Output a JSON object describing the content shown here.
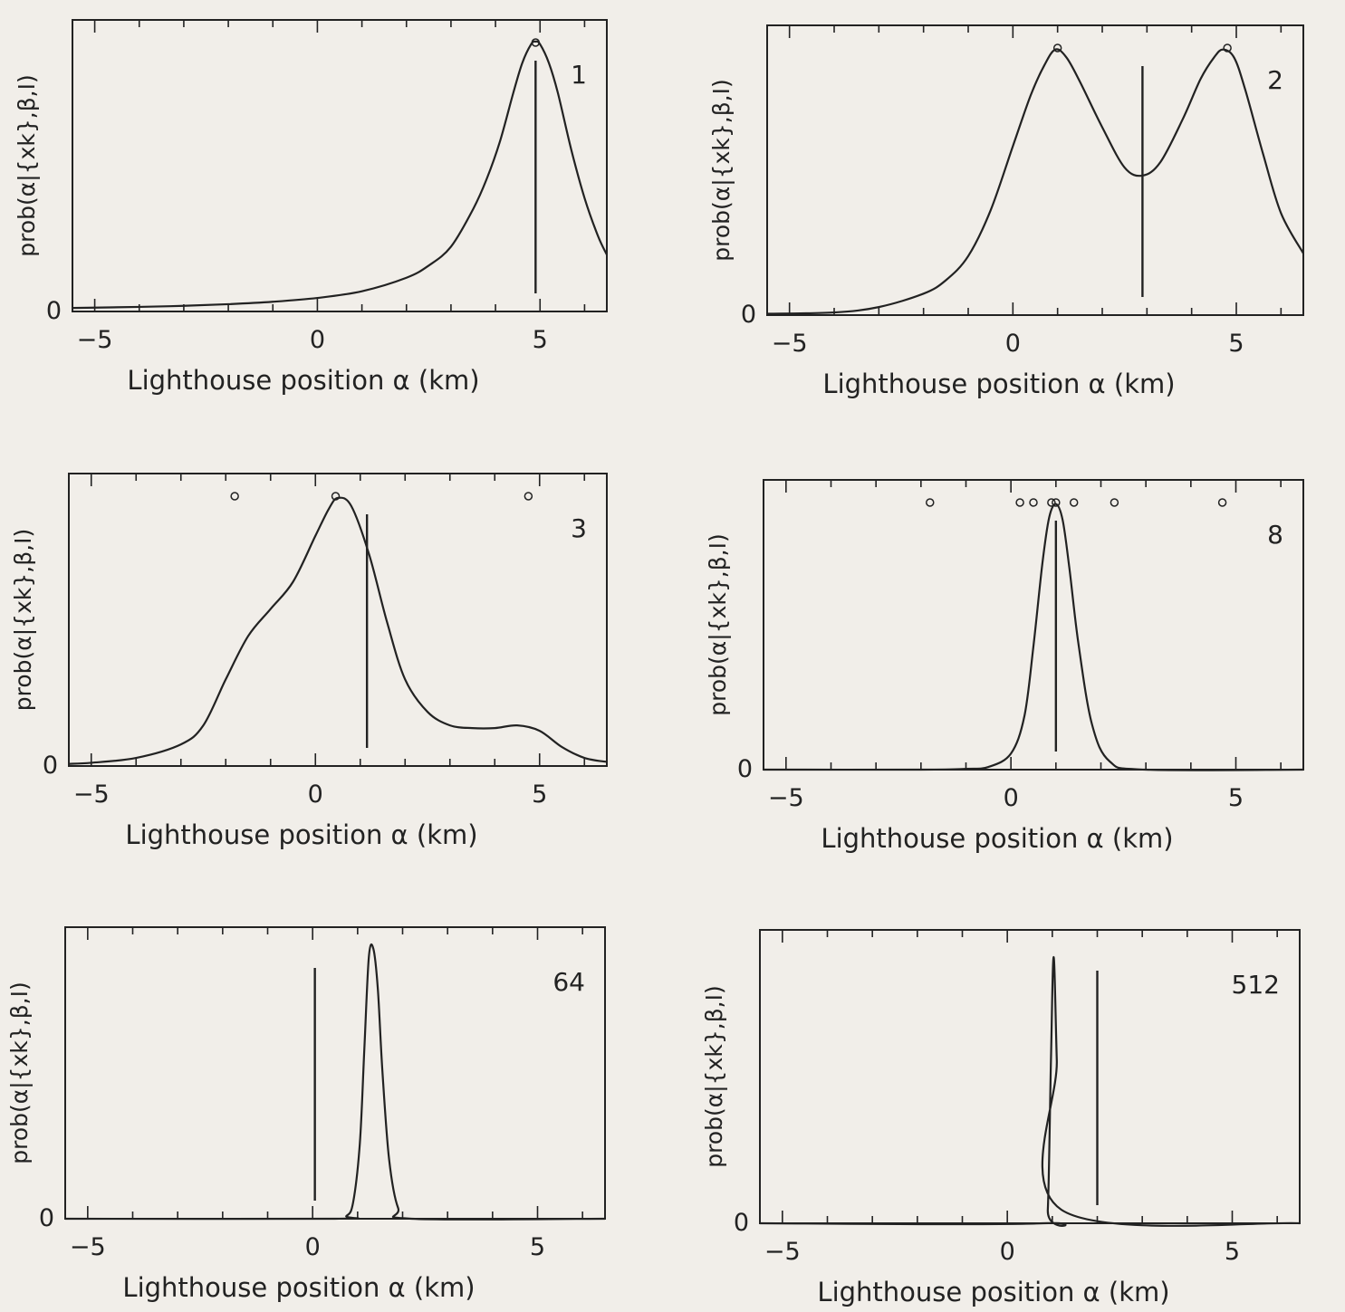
{
  "chart_data": [
    {
      "type": "line",
      "panel_label": "1",
      "xlabel": "Lighthouse position  α (km)",
      "ylabel": "prob(α|{xk},β,I)",
      "x_ticks": [
        "−5",
        "0",
        "5"
      ],
      "y_ticks": [
        "0"
      ],
      "xlim": [
        -5.5,
        6.5
      ],
      "ylim": [
        0,
        1.08
      ],
      "mean_line_x": 4.9,
      "observations": [
        4.9
      ],
      "x": [
        -5.5,
        -4,
        -3,
        -2,
        -1,
        0,
        1,
        2,
        2.5,
        3,
        3.5,
        3.8,
        4.1,
        4.4,
        4.6,
        4.8,
        4.9,
        5.0,
        5.2,
        5.4,
        5.7,
        6.0,
        6.3,
        6.5
      ],
      "y": [
        0.013,
        0.017,
        0.021,
        0.027,
        0.036,
        0.05,
        0.075,
        0.125,
        0.17,
        0.24,
        0.38,
        0.49,
        0.63,
        0.81,
        0.92,
        0.99,
        1.0,
        0.99,
        0.92,
        0.81,
        0.6,
        0.42,
        0.28,
        0.21
      ]
    },
    {
      "type": "line",
      "panel_label": "2",
      "xlabel": "Lighthouse position  α (km)",
      "ylabel": "prob(α|{xk},β,I)",
      "x_ticks": [
        "−5",
        "0",
        "5"
      ],
      "y_ticks": [
        "0"
      ],
      "xlim": [
        -5.5,
        6.5
      ],
      "ylim": [
        0,
        1.08
      ],
      "mean_line_x": 2.9,
      "observations": [
        1.0,
        4.8
      ],
      "x": [
        -5.5,
        -4,
        -3,
        -2,
        -1.5,
        -1,
        -0.5,
        0,
        0.4,
        0.7,
        0.95,
        1.2,
        1.5,
        2,
        2.5,
        2.9,
        3.3,
        3.8,
        4.2,
        4.5,
        4.7,
        4.95,
        5.2,
        5.6,
        6.0,
        6.5
      ],
      "y": [
        0.005,
        0.01,
        0.03,
        0.08,
        0.13,
        0.22,
        0.39,
        0.63,
        0.82,
        0.93,
        0.99,
        0.96,
        0.87,
        0.7,
        0.55,
        0.52,
        0.57,
        0.73,
        0.88,
        0.96,
        0.99,
        0.96,
        0.84,
        0.6,
        0.38,
        0.23
      ]
    },
    {
      "type": "line",
      "panel_label": "3",
      "xlabel": "Lighthouse position  α (km)",
      "ylabel": "prob(α|{xk},β,I)",
      "x_ticks": [
        "−5",
        "0",
        "5"
      ],
      "y_ticks": [
        "0"
      ],
      "xlim": [
        -5.5,
        6.5
      ],
      "ylim": [
        0,
        1.08
      ],
      "mean_line_x": 1.15,
      "observations": [
        -1.8,
        0.45,
        4.75
      ],
      "x": [
        -5.5,
        -5,
        -4,
        -3,
        -2.5,
        -2,
        -1.5,
        -1,
        -0.5,
        0,
        0.3,
        0.5,
        0.8,
        1.2,
        1.6,
        2.0,
        2.5,
        3.0,
        3.5,
        4.0,
        4.5,
        5.0,
        5.5,
        6.0,
        6.5
      ],
      "y": [
        0.008,
        0.012,
        0.03,
        0.08,
        0.15,
        0.32,
        0.48,
        0.58,
        0.68,
        0.85,
        0.95,
        0.99,
        0.96,
        0.78,
        0.53,
        0.32,
        0.2,
        0.15,
        0.14,
        0.14,
        0.15,
        0.13,
        0.07,
        0.03,
        0.015
      ]
    },
    {
      "type": "line",
      "panel_label": "8",
      "xlabel": "Lighthouse position  α (km)",
      "ylabel": "prob(α|{xk},β,I)",
      "x_ticks": [
        "−5",
        "0",
        "5"
      ],
      "y_ticks": [
        "0"
      ],
      "xlim": [
        -5.5,
        6.5
      ],
      "ylim": [
        0,
        1.08
      ],
      "mean_line_x": 1.0,
      "observations": [
        -1.8,
        0.2,
        0.5,
        0.9,
        1.0,
        1.4,
        2.3,
        4.7
      ],
      "x": [
        -5.5,
        -2,
        -1,
        -0.5,
        0,
        0.3,
        0.5,
        0.7,
        0.85,
        1.0,
        1.15,
        1.3,
        1.5,
        1.8,
        2.2,
        3,
        6.5
      ],
      "y": [
        0,
        0,
        0.003,
        0.01,
        0.06,
        0.2,
        0.46,
        0.77,
        0.94,
        0.99,
        0.93,
        0.75,
        0.47,
        0.17,
        0.03,
        0,
        0
      ]
    },
    {
      "type": "line",
      "panel_label": "64",
      "xlabel": "Lighthouse position  α (km)",
      "ylabel": "prob(α|{xk},β,I)",
      "x_ticks": [
        "−5",
        "0",
        "5"
      ],
      "y_ticks": [
        "0"
      ],
      "xlim": [
        -5.5,
        6.5
      ],
      "ylim": [
        0,
        1.08
      ],
      "mean_line_x": 0.05,
      "observations": [],
      "x": [
        -5.5,
        0.5,
        0.75,
        0.9,
        1.05,
        1.15,
        1.25,
        1.35,
        1.45,
        1.55,
        1.7,
        1.9,
        2.2,
        6.5
      ],
      "y": [
        0,
        0,
        0.01,
        0.06,
        0.28,
        0.63,
        0.97,
        1.0,
        0.85,
        0.55,
        0.22,
        0.04,
        0,
        0
      ]
    },
    {
      "type": "line",
      "panel_label": "512",
      "xlabel": "Lighthouse position  α (km)",
      "ylabel": "prob(α|{xk},β,I)",
      "x_ticks": [
        "−5",
        "0",
        "5"
      ],
      "y_ticks": [
        "0"
      ],
      "xlim": [
        -5.5,
        6.5
      ],
      "ylim": [
        0,
        1.08
      ],
      "mean_line_x": 2.0,
      "observations": [],
      "x": [
        -5.5,
        0.8,
        0.9,
        0.97,
        1.03,
        1.1,
        1.2,
        6.5
      ],
      "y": [
        0,
        0,
        0.05,
        0.6,
        0.98,
        0.6,
        0.05,
        0
      ]
    }
  ]
}
